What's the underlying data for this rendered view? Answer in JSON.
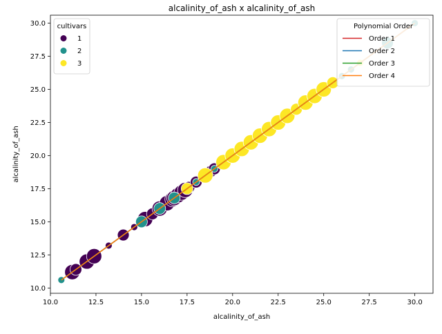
{
  "chart_data": {
    "type": "scatter",
    "title": "alcalinity_of_ash x alcalinity_of_ash",
    "xlabel": "alcalinity_of_ash",
    "ylabel": "alcalinity_of_ash",
    "xlim": [
      10.0,
      31.0
    ],
    "ylim": [
      9.6,
      30.6
    ],
    "xticks": [
      10.0,
      12.5,
      15.0,
      17.5,
      20.0,
      22.5,
      25.0,
      27.5,
      30.0
    ],
    "xtick_labels": [
      "10.0",
      "12.5",
      "15.0",
      "17.5",
      "20.0",
      "22.5",
      "25.0",
      "27.5",
      "30.0"
    ],
    "yticks": [
      10.0,
      12.5,
      15.0,
      17.5,
      20.0,
      22.5,
      25.0,
      27.5,
      30.0
    ],
    "ytick_labels": [
      "10.0",
      "12.5",
      "15.0",
      "17.5",
      "20.0",
      "22.5",
      "25.0",
      "27.5",
      "30.0"
    ],
    "grid": false,
    "hue_legend": {
      "title": "cultivars",
      "placement": "top-left",
      "entries": [
        {
          "label": "1",
          "color": "#440154"
        },
        {
          "label": "2",
          "color": "#21918c"
        },
        {
          "label": "3",
          "color": "#fde725"
        }
      ]
    },
    "fit_legend": {
      "title": "Polynomial Order",
      "placement": "top-right",
      "entries": [
        {
          "label": "Order 1",
          "color": "#d62728"
        },
        {
          "label": "Order 2",
          "color": "#1f77b4"
        },
        {
          "label": "Order 3",
          "color": "#2ca02c"
        },
        {
          "label": "Order 4",
          "color": "#ff7f0e"
        }
      ]
    },
    "fit_lines": [
      {
        "order": 1,
        "x": [
          10.6,
          30.0
        ],
        "y": [
          10.6,
          30.0
        ]
      },
      {
        "order": 2,
        "x": [
          10.6,
          30.0
        ],
        "y": [
          10.6,
          30.0
        ]
      },
      {
        "order": 3,
        "x": [
          10.6,
          30.0
        ],
        "y": [
          10.6,
          30.0
        ]
      },
      {
        "order": 4,
        "x": [
          10.6,
          30.0
        ],
        "y": [
          10.6,
          30.0
        ]
      }
    ],
    "series": [
      {
        "name": "1",
        "color": "#440154",
        "points": [
          {
            "x": 11.2,
            "y": 11.2,
            "s": 3
          },
          {
            "x": 11.4,
            "y": 11.4,
            "s": 2
          },
          {
            "x": 12.0,
            "y": 12.0,
            "s": 3
          },
          {
            "x": 12.4,
            "y": 12.4,
            "s": 3
          },
          {
            "x": 13.2,
            "y": 13.2,
            "s": 1
          },
          {
            "x": 14.0,
            "y": 14.0,
            "s": 2
          },
          {
            "x": 14.6,
            "y": 14.6,
            "s": 1
          },
          {
            "x": 15.2,
            "y": 15.2,
            "s": 3
          },
          {
            "x": 15.6,
            "y": 15.6,
            "s": 2
          },
          {
            "x": 16.0,
            "y": 16.0,
            "s": 3
          },
          {
            "x": 16.4,
            "y": 16.4,
            "s": 3
          },
          {
            "x": 16.7,
            "y": 16.7,
            "s": 3
          },
          {
            "x": 16.8,
            "y": 16.8,
            "s": 3
          },
          {
            "x": 17.0,
            "y": 17.0,
            "s": 3
          },
          {
            "x": 17.2,
            "y": 17.2,
            "s": 3
          },
          {
            "x": 17.4,
            "y": 17.4,
            "s": 3
          },
          {
            "x": 17.6,
            "y": 17.6,
            "s": 2
          },
          {
            "x": 18.0,
            "y": 18.0,
            "s": 2
          },
          {
            "x": 18.6,
            "y": 18.6,
            "s": 2
          },
          {
            "x": 18.8,
            "y": 18.8,
            "s": 2
          },
          {
            "x": 19.0,
            "y": 19.0,
            "s": 2
          },
          {
            "x": 20.0,
            "y": 20.0,
            "s": 1
          },
          {
            "x": 25.0,
            "y": 25.0,
            "s": 1
          }
        ]
      },
      {
        "name": "2",
        "color": "#21918c",
        "points": [
          {
            "x": 10.6,
            "y": 10.6,
            "s": 1
          },
          {
            "x": 15.0,
            "y": 15.0,
            "s": 2
          },
          {
            "x": 16.0,
            "y": 16.0,
            "s": 2
          },
          {
            "x": 16.8,
            "y": 16.8,
            "s": 2
          },
          {
            "x": 18.0,
            "y": 18.0,
            "s": 1
          },
          {
            "x": 19.0,
            "y": 19.0,
            "s": 1
          },
          {
            "x": 20.0,
            "y": 20.0,
            "s": 1
          },
          {
            "x": 21.0,
            "y": 21.0,
            "s": 1
          },
          {
            "x": 22.5,
            "y": 22.5,
            "s": 1
          },
          {
            "x": 26.0,
            "y": 26.0,
            "s": 1
          },
          {
            "x": 26.5,
            "y": 26.5,
            "s": 1
          },
          {
            "x": 28.5,
            "y": 28.5,
            "s": 2
          },
          {
            "x": 30.0,
            "y": 30.0,
            "s": 1
          }
        ]
      },
      {
        "name": "3",
        "color": "#fde725",
        "points": [
          {
            "x": 17.5,
            "y": 17.5,
            "s": 2
          },
          {
            "x": 18.5,
            "y": 18.5,
            "s": 3
          },
          {
            "x": 19.5,
            "y": 19.5,
            "s": 3
          },
          {
            "x": 20.0,
            "y": 20.0,
            "s": 3
          },
          {
            "x": 20.5,
            "y": 20.5,
            "s": 3
          },
          {
            "x": 21.0,
            "y": 21.0,
            "s": 3
          },
          {
            "x": 21.5,
            "y": 21.5,
            "s": 3
          },
          {
            "x": 22.0,
            "y": 22.0,
            "s": 3
          },
          {
            "x": 22.5,
            "y": 22.5,
            "s": 3
          },
          {
            "x": 23.0,
            "y": 23.0,
            "s": 3
          },
          {
            "x": 23.5,
            "y": 23.5,
            "s": 2
          },
          {
            "x": 24.0,
            "y": 24.0,
            "s": 3
          },
          {
            "x": 24.5,
            "y": 24.5,
            "s": 3
          },
          {
            "x": 25.0,
            "y": 25.0,
            "s": 3
          },
          {
            "x": 25.5,
            "y": 25.5,
            "s": 2
          },
          {
            "x": 27.0,
            "y": 27.0,
            "s": 1
          }
        ]
      }
    ]
  }
}
